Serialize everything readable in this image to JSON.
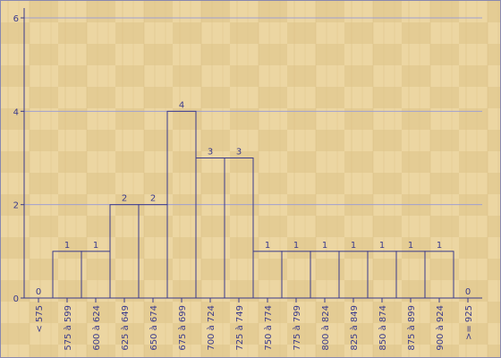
{
  "chart_data": {
    "type": "bar",
    "title": "",
    "xlabel": "",
    "ylabel": "",
    "ylim": [
      0,
      6
    ],
    "yticks": [
      0,
      2,
      4,
      6
    ],
    "grid": true,
    "categories": [
      "< 575",
      "575 à 599",
      "600 à 624",
      "625 à 649",
      "650 à 674",
      "675 à 699",
      "700 à 724",
      "725 à 749",
      "750 à 774",
      "775 à 799",
      "800 à 824",
      "825 à 849",
      "850 à 874",
      "875 à 899",
      "900 à 924",
      ">= 925"
    ],
    "values": [
      0,
      1,
      1,
      2,
      2,
      4,
      3,
      3,
      1,
      1,
      1,
      1,
      1,
      1,
      1,
      0
    ],
    "colors": {
      "background": "#e8d29c",
      "axis": "#3a3a8c",
      "grid": "#a0a0d0"
    }
  }
}
